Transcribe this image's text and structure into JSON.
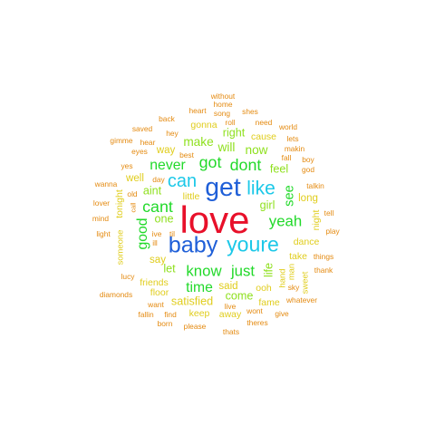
{
  "word_cloud": {
    "colors": {
      "red": "#e8102a",
      "blue": "#1f5fd8",
      "cyan": "#1cc8e8",
      "green": "#22d92a",
      "lime": "#8fe01e",
      "yellow": "#e0cd1c",
      "orange": "#e48a10"
    },
    "words": [
      {
        "text": "love",
        "color": "red"
      },
      {
        "text": "get",
        "color": "blue"
      },
      {
        "text": "like",
        "color": "cyan"
      },
      {
        "text": "baby",
        "color": "blue"
      },
      {
        "text": "youre",
        "color": "cyan"
      },
      {
        "text": "can",
        "color": "cyan"
      },
      {
        "text": "got",
        "color": "green"
      },
      {
        "text": "dont",
        "color": "green"
      },
      {
        "text": "never",
        "color": "green"
      },
      {
        "text": "cant",
        "color": "green"
      },
      {
        "text": "yeah",
        "color": "green"
      },
      {
        "text": "know",
        "color": "green"
      },
      {
        "text": "just",
        "color": "green"
      },
      {
        "text": "time",
        "color": "green"
      },
      {
        "text": "good",
        "color": "green"
      },
      {
        "text": "see",
        "color": "green"
      },
      {
        "text": "make",
        "color": "lime"
      },
      {
        "text": "will",
        "color": "lime"
      },
      {
        "text": "now",
        "color": "lime"
      },
      {
        "text": "right",
        "color": "lime"
      },
      {
        "text": "feel",
        "color": "lime"
      },
      {
        "text": "aint",
        "color": "lime"
      },
      {
        "text": "one",
        "color": "lime"
      },
      {
        "text": "let",
        "color": "lime"
      },
      {
        "text": "girl",
        "color": "lime"
      },
      {
        "text": "life",
        "color": "lime"
      },
      {
        "text": "come",
        "color": "lime"
      },
      {
        "text": "satisfied",
        "color": "yellow"
      },
      {
        "text": "said",
        "color": "yellow"
      },
      {
        "text": "say",
        "color": "yellow"
      },
      {
        "text": "long",
        "color": "yellow"
      },
      {
        "text": "well",
        "color": "yellow"
      },
      {
        "text": "way",
        "color": "yellow"
      },
      {
        "text": "little",
        "color": "yellow"
      },
      {
        "text": "cause",
        "color": "yellow"
      },
      {
        "text": "gonna",
        "color": "yellow"
      },
      {
        "text": "ooh",
        "color": "yellow"
      },
      {
        "text": "dance",
        "color": "yellow"
      },
      {
        "text": "take",
        "color": "yellow"
      },
      {
        "text": "friends",
        "color": "yellow"
      },
      {
        "text": "floor",
        "color": "yellow"
      },
      {
        "text": "fame",
        "color": "yellow"
      },
      {
        "text": "keep",
        "color": "yellow"
      },
      {
        "text": "away",
        "color": "yellow"
      },
      {
        "text": "tonight",
        "color": "yellow"
      },
      {
        "text": "someone",
        "color": "yellow"
      },
      {
        "text": "night",
        "color": "yellow"
      },
      {
        "text": "man",
        "color": "yellow"
      },
      {
        "text": "hand",
        "color": "yellow"
      },
      {
        "text": "sweet",
        "color": "yellow"
      },
      {
        "text": "without",
        "color": "orange"
      },
      {
        "text": "home",
        "color": "orange"
      },
      {
        "text": "heart",
        "color": "orange"
      },
      {
        "text": "song",
        "color": "orange"
      },
      {
        "text": "shes",
        "color": "orange"
      },
      {
        "text": "back",
        "color": "orange"
      },
      {
        "text": "roll",
        "color": "orange"
      },
      {
        "text": "need",
        "color": "orange"
      },
      {
        "text": "world",
        "color": "orange"
      },
      {
        "text": "saved",
        "color": "orange"
      },
      {
        "text": "hey",
        "color": "orange"
      },
      {
        "text": "gimme",
        "color": "orange"
      },
      {
        "text": "hear",
        "color": "orange"
      },
      {
        "text": "lets",
        "color": "orange"
      },
      {
        "text": "eyes",
        "color": "orange"
      },
      {
        "text": "best",
        "color": "orange"
      },
      {
        "text": "makin",
        "color": "orange"
      },
      {
        "text": "yes",
        "color": "orange"
      },
      {
        "text": "fall",
        "color": "orange"
      },
      {
        "text": "boy",
        "color": "orange"
      },
      {
        "text": "god",
        "color": "orange"
      },
      {
        "text": "day",
        "color": "orange"
      },
      {
        "text": "wanna",
        "color": "orange"
      },
      {
        "text": "old",
        "color": "orange"
      },
      {
        "text": "talkin",
        "color": "orange"
      },
      {
        "text": "lover",
        "color": "orange"
      },
      {
        "text": "call",
        "color": "orange"
      },
      {
        "text": "tell",
        "color": "orange"
      },
      {
        "text": "mind",
        "color": "orange"
      },
      {
        "text": "light",
        "color": "orange"
      },
      {
        "text": "ive",
        "color": "orange"
      },
      {
        "text": "til",
        "color": "orange"
      },
      {
        "text": "play",
        "color": "orange"
      },
      {
        "text": "ill",
        "color": "orange"
      },
      {
        "text": "things",
        "color": "orange"
      },
      {
        "text": "lucy",
        "color": "orange"
      },
      {
        "text": "sky",
        "color": "orange"
      },
      {
        "text": "thank",
        "color": "orange"
      },
      {
        "text": "diamonds",
        "color": "orange"
      },
      {
        "text": "want",
        "color": "orange"
      },
      {
        "text": "whatever",
        "color": "orange"
      },
      {
        "text": "live",
        "color": "orange"
      },
      {
        "text": "fallin",
        "color": "orange"
      },
      {
        "text": "find",
        "color": "orange"
      },
      {
        "text": "wont",
        "color": "orange"
      },
      {
        "text": "give",
        "color": "orange"
      },
      {
        "text": "born",
        "color": "orange"
      },
      {
        "text": "please",
        "color": "orange"
      },
      {
        "text": "theres",
        "color": "orange"
      },
      {
        "text": "thats",
        "color": "orange"
      }
    ]
  }
}
